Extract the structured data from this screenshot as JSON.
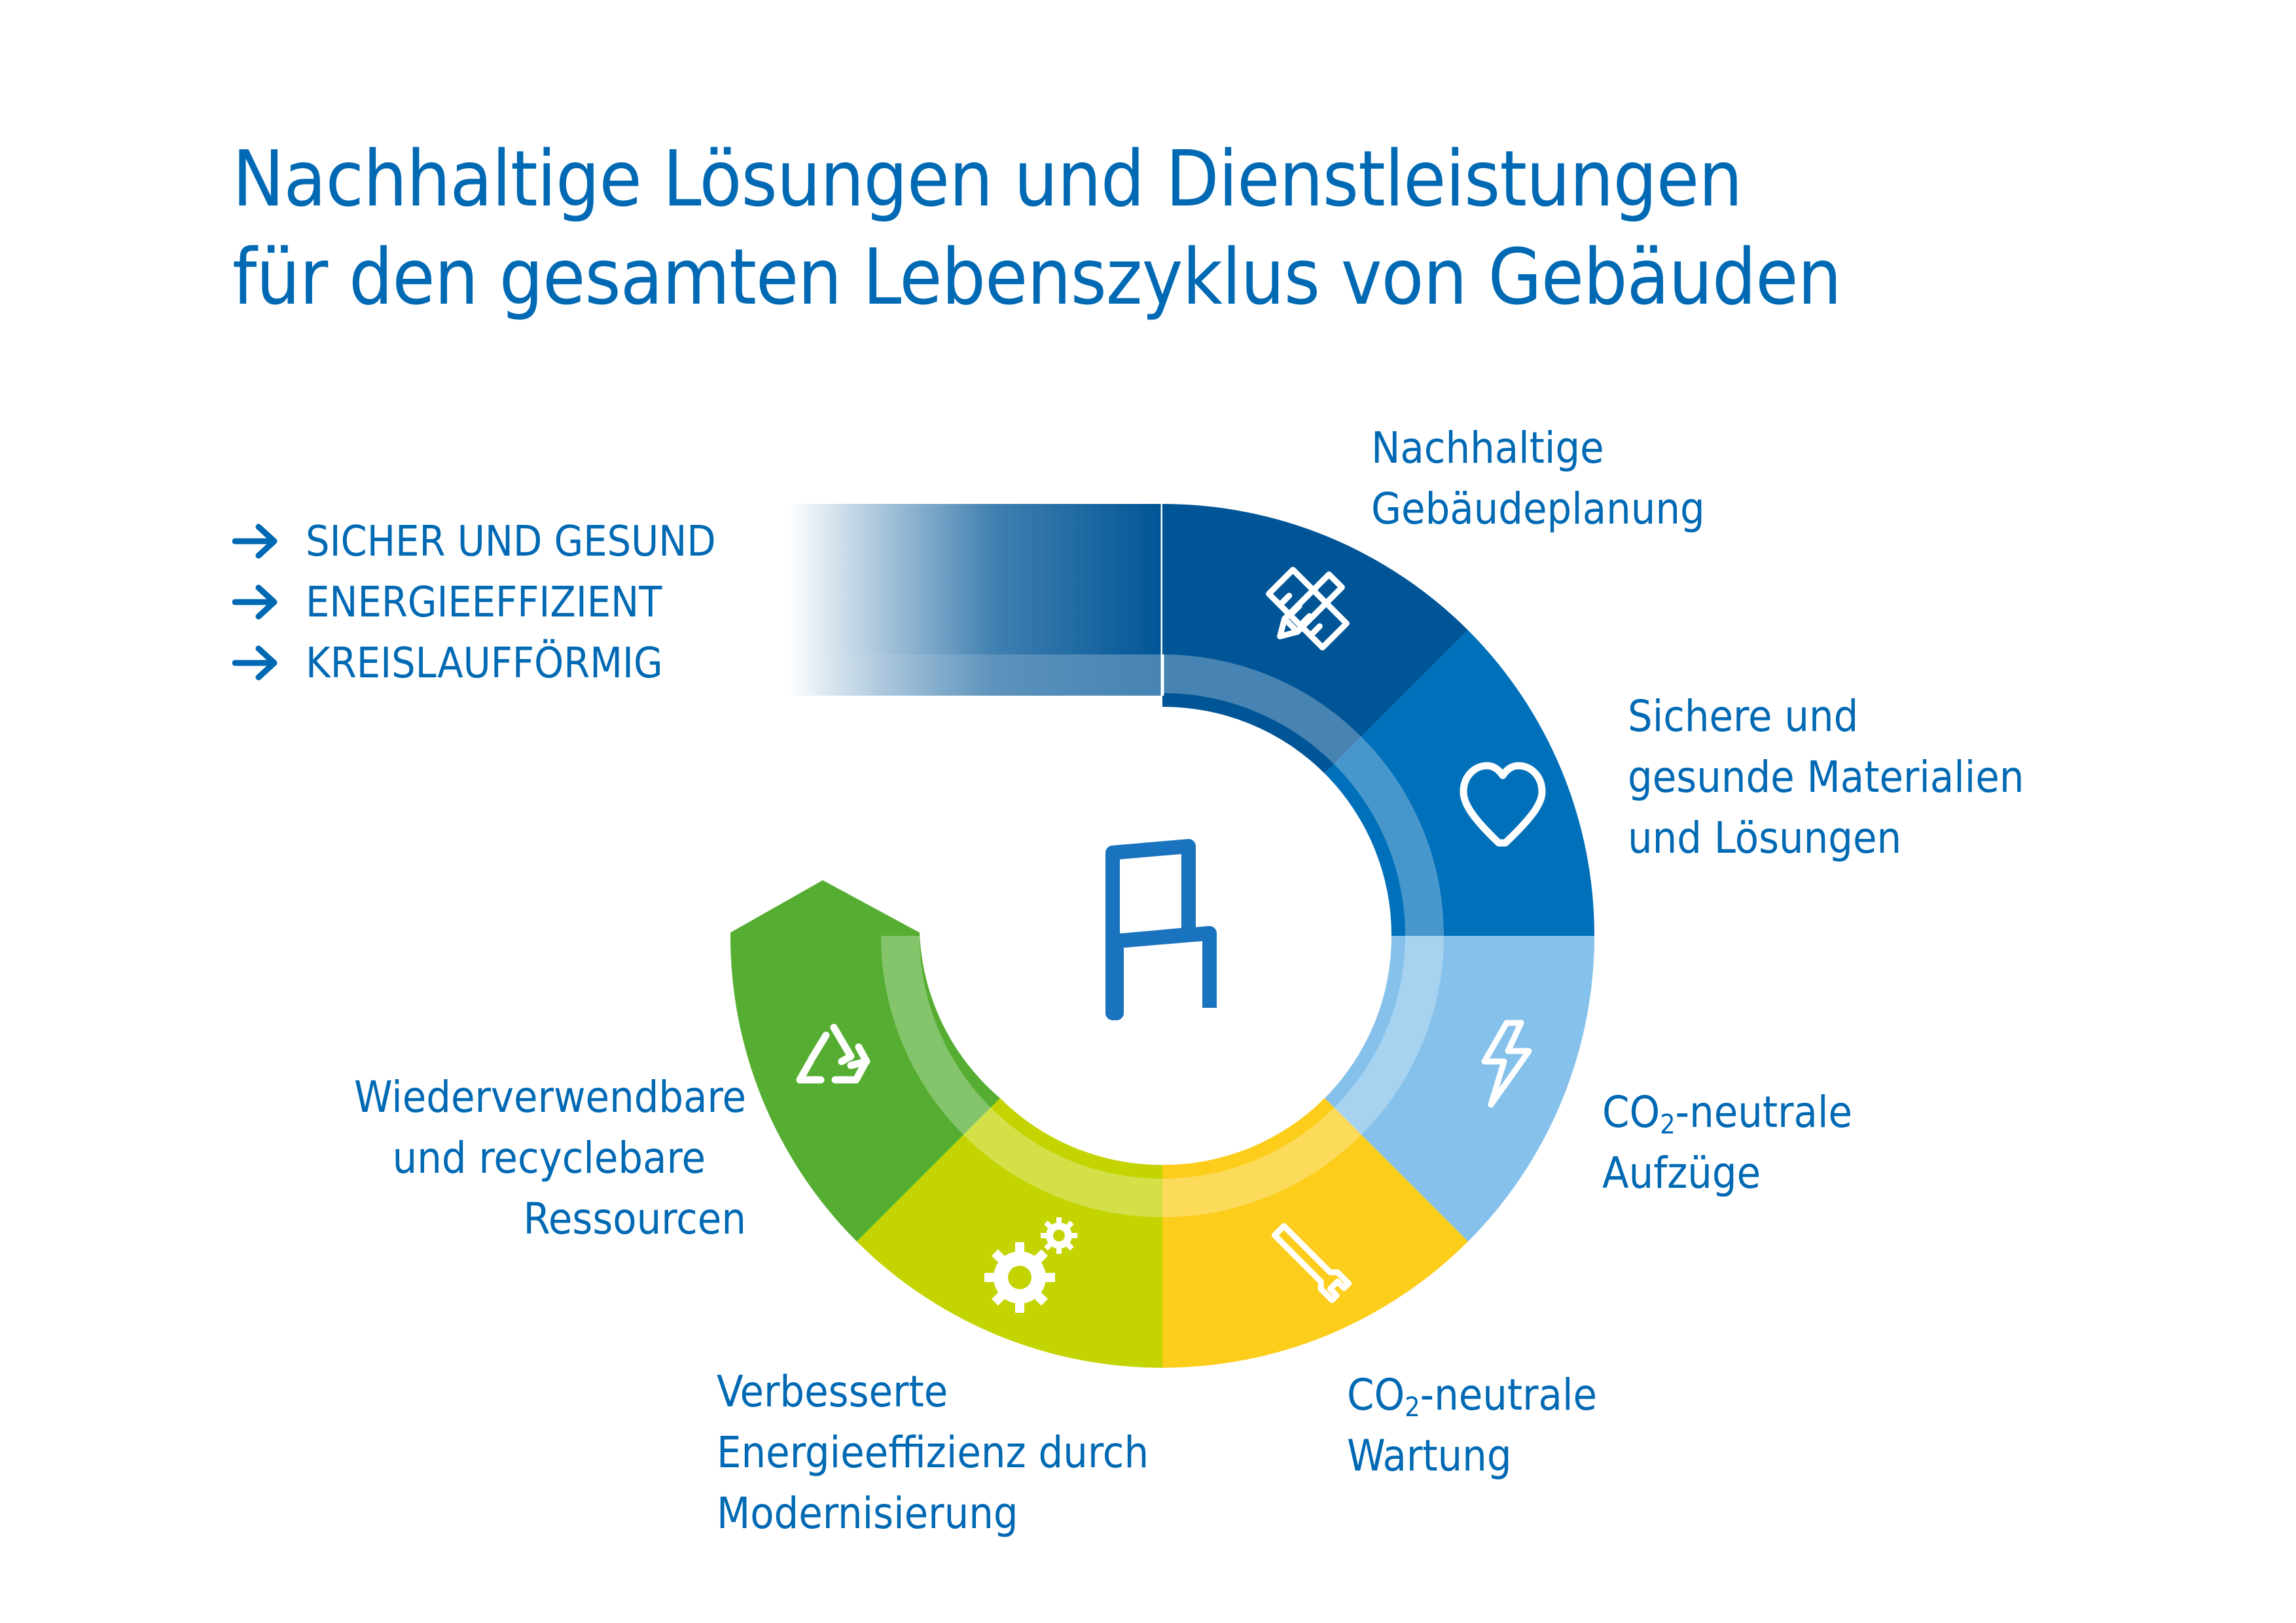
{
  "title": {
    "line1": "Nachhaltige Lösungen und Dienstleistungen",
    "line2": "für den gesamten Lebenszyklus von Gebäuden"
  },
  "bullets": [
    "SICHER UND GESUND",
    "ENERGIEEFFIZIENT",
    "KREISLAUFFÖRMIG"
  ],
  "segments": [
    {
      "id": "planning",
      "icon": "pencil-ruler-icon",
      "color": "#005596",
      "label": [
        "Nachhaltige",
        "Gebäudeplanung"
      ]
    },
    {
      "id": "materials",
      "icon": "heart-icon",
      "color": "#0070BA",
      "label": [
        "Sichere und",
        "gesunde Materialien",
        "und Lösungen"
      ]
    },
    {
      "id": "elevators",
      "icon": "lightning-icon",
      "color": "#85C1EA",
      "label_prefix": "CO",
      "label_sub": "2",
      "label_suffix": "-neutrale",
      "label_line2": "Aufzüge"
    },
    {
      "id": "maintenance",
      "icon": "wrench-icon",
      "color": "#FDCD1B",
      "label_prefix": "CO",
      "label_sub": "2",
      "label_suffix": "-neutrale",
      "label_line2": "Wartung"
    },
    {
      "id": "modernization",
      "icon": "gears-icon",
      "color": "#C3D400",
      "label": [
        "Verbesserte",
        "Energieeffizienz durch",
        "Modernisierung"
      ]
    },
    {
      "id": "resources",
      "icon": "recycle-icon",
      "color": "#55AE31",
      "label": [
        "Wiederverwendbare",
        "und recyclebare",
        "Ressourcen"
      ]
    }
  ],
  "colors": {
    "title": "#0069B4",
    "text": "#0069B4",
    "band_dark": "#005596"
  }
}
